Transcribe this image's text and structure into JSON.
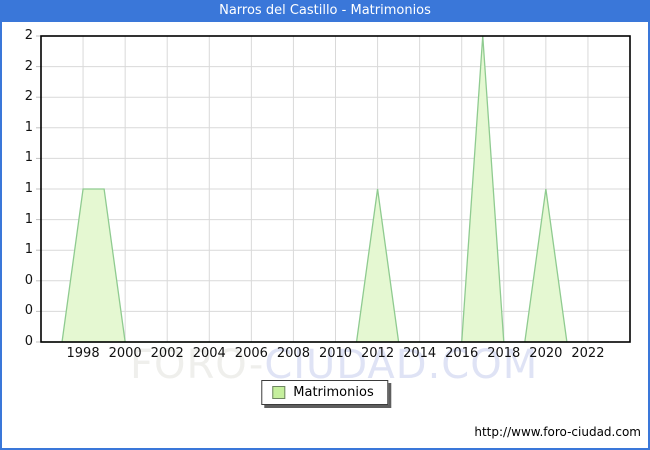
{
  "header": {
    "title": "Narros del Castillo - Matrimonios"
  },
  "watermark": {
    "part1": "FORO-",
    "part2": "CIUDAD.COM"
  },
  "legend": {
    "label": "Matrimonios"
  },
  "footer": {
    "url": "http://www.foro-ciudad.com"
  },
  "colors": {
    "accent": "#3a77d9",
    "grid": "#d9d9d9",
    "tick_stub": "#c0c0c0",
    "plot_border": "#000000",
    "area_fill": "#e5f8d2",
    "area_stroke": "#8fcb90",
    "legend_swatch": "#c5ef9d"
  },
  "chart_data": {
    "type": "area",
    "title": "Narros del Castillo - Matrimonios",
    "xlabel": "",
    "ylabel": "",
    "xlim": [
      1996,
      2024
    ],
    "ylim": [
      0,
      2
    ],
    "grid": true,
    "legend_position": "bottom-center",
    "x_ticks": [
      1998,
      2000,
      2002,
      2004,
      2006,
      2008,
      2010,
      2012,
      2014,
      2016,
      2018,
      2020,
      2022
    ],
    "y_ticks": [
      {
        "value": 0.0,
        "label": "0"
      },
      {
        "value": 0.2,
        "label": "0"
      },
      {
        "value": 0.4,
        "label": "0"
      },
      {
        "value": 0.6,
        "label": "1"
      },
      {
        "value": 0.8,
        "label": "1"
      },
      {
        "value": 1.0,
        "label": "1"
      },
      {
        "value": 1.2,
        "label": "1"
      },
      {
        "value": 1.4,
        "label": "1"
      },
      {
        "value": 1.6,
        "label": "2"
      },
      {
        "value": 1.8,
        "label": "2"
      },
      {
        "value": 2.0,
        "label": "2"
      }
    ],
    "series": [
      {
        "name": "Matrimonios",
        "x": [
          1996,
          1997,
          1998,
          1999,
          2000,
          2001,
          2002,
          2003,
          2004,
          2005,
          2006,
          2007,
          2008,
          2009,
          2010,
          2011,
          2012,
          2013,
          2014,
          2015,
          2016,
          2017,
          2018,
          2019,
          2020,
          2021,
          2022,
          2023
        ],
        "values": [
          0,
          0,
          1,
          1,
          0,
          0,
          0,
          0,
          0,
          0,
          0,
          0,
          0,
          0,
          0,
          0,
          1,
          0,
          0,
          0,
          0,
          2,
          0,
          0,
          1,
          0,
          0,
          0
        ]
      }
    ]
  }
}
